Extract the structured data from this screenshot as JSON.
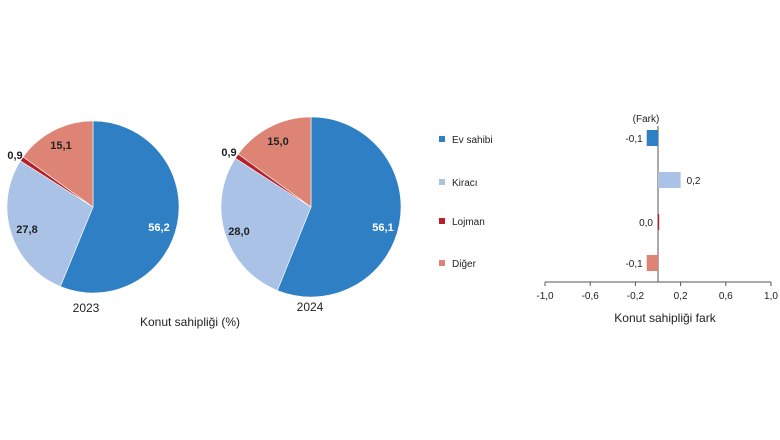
{
  "chart_data": [
    {
      "type": "pie",
      "label": "2023",
      "categories": [
        "Ev sahibi",
        "Kiracı",
        "Lojman",
        "Diğer"
      ],
      "values": [
        56.2,
        27.8,
        0.9,
        15.1
      ],
      "value_labels": [
        "56,2",
        "27,8",
        "0,9",
        "15,1"
      ]
    },
    {
      "type": "pie",
      "label": "2024",
      "categories": [
        "Ev sahibi",
        "Kiracı",
        "Lojman",
        "Diğer"
      ],
      "values": [
        56.1,
        28.0,
        0.9,
        15.0
      ],
      "value_labels": [
        "56,1",
        "28,0",
        "0,9",
        "15,0"
      ]
    },
    {
      "type": "bar",
      "orientation": "horizontal",
      "categories": [
        "Ev sahibi",
        "Kiracı",
        "Lojman",
        "Diğer"
      ],
      "values": [
        -0.1,
        0.2,
        0.0,
        -0.1
      ],
      "value_labels": [
        "-0,1",
        "0,2",
        "0,0",
        "-0,1"
      ],
      "unit_label": "(Fark)",
      "xlabel": "Konut sahipliği fark",
      "xlim": [
        -1.0,
        1.0
      ],
      "xticks": [
        -1.0,
        -0.6,
        -0.2,
        0.2,
        0.6,
        1.0
      ],
      "xtick_labels": [
        "-1,0",
        "-0,6",
        "-0,2",
        "0,2",
        "0,6",
        "1,0"
      ]
    }
  ],
  "pies_xlabel": "Konut sahipliği (%)",
  "legend": [
    {
      "name": "Ev sahibi",
      "color": "#2e7fc4"
    },
    {
      "name": "Kiracı",
      "color": "#a9c2e6"
    },
    {
      "name": "Lojman",
      "color": "#b5202b"
    },
    {
      "name": "Diğer",
      "color": "#de8475"
    }
  ]
}
